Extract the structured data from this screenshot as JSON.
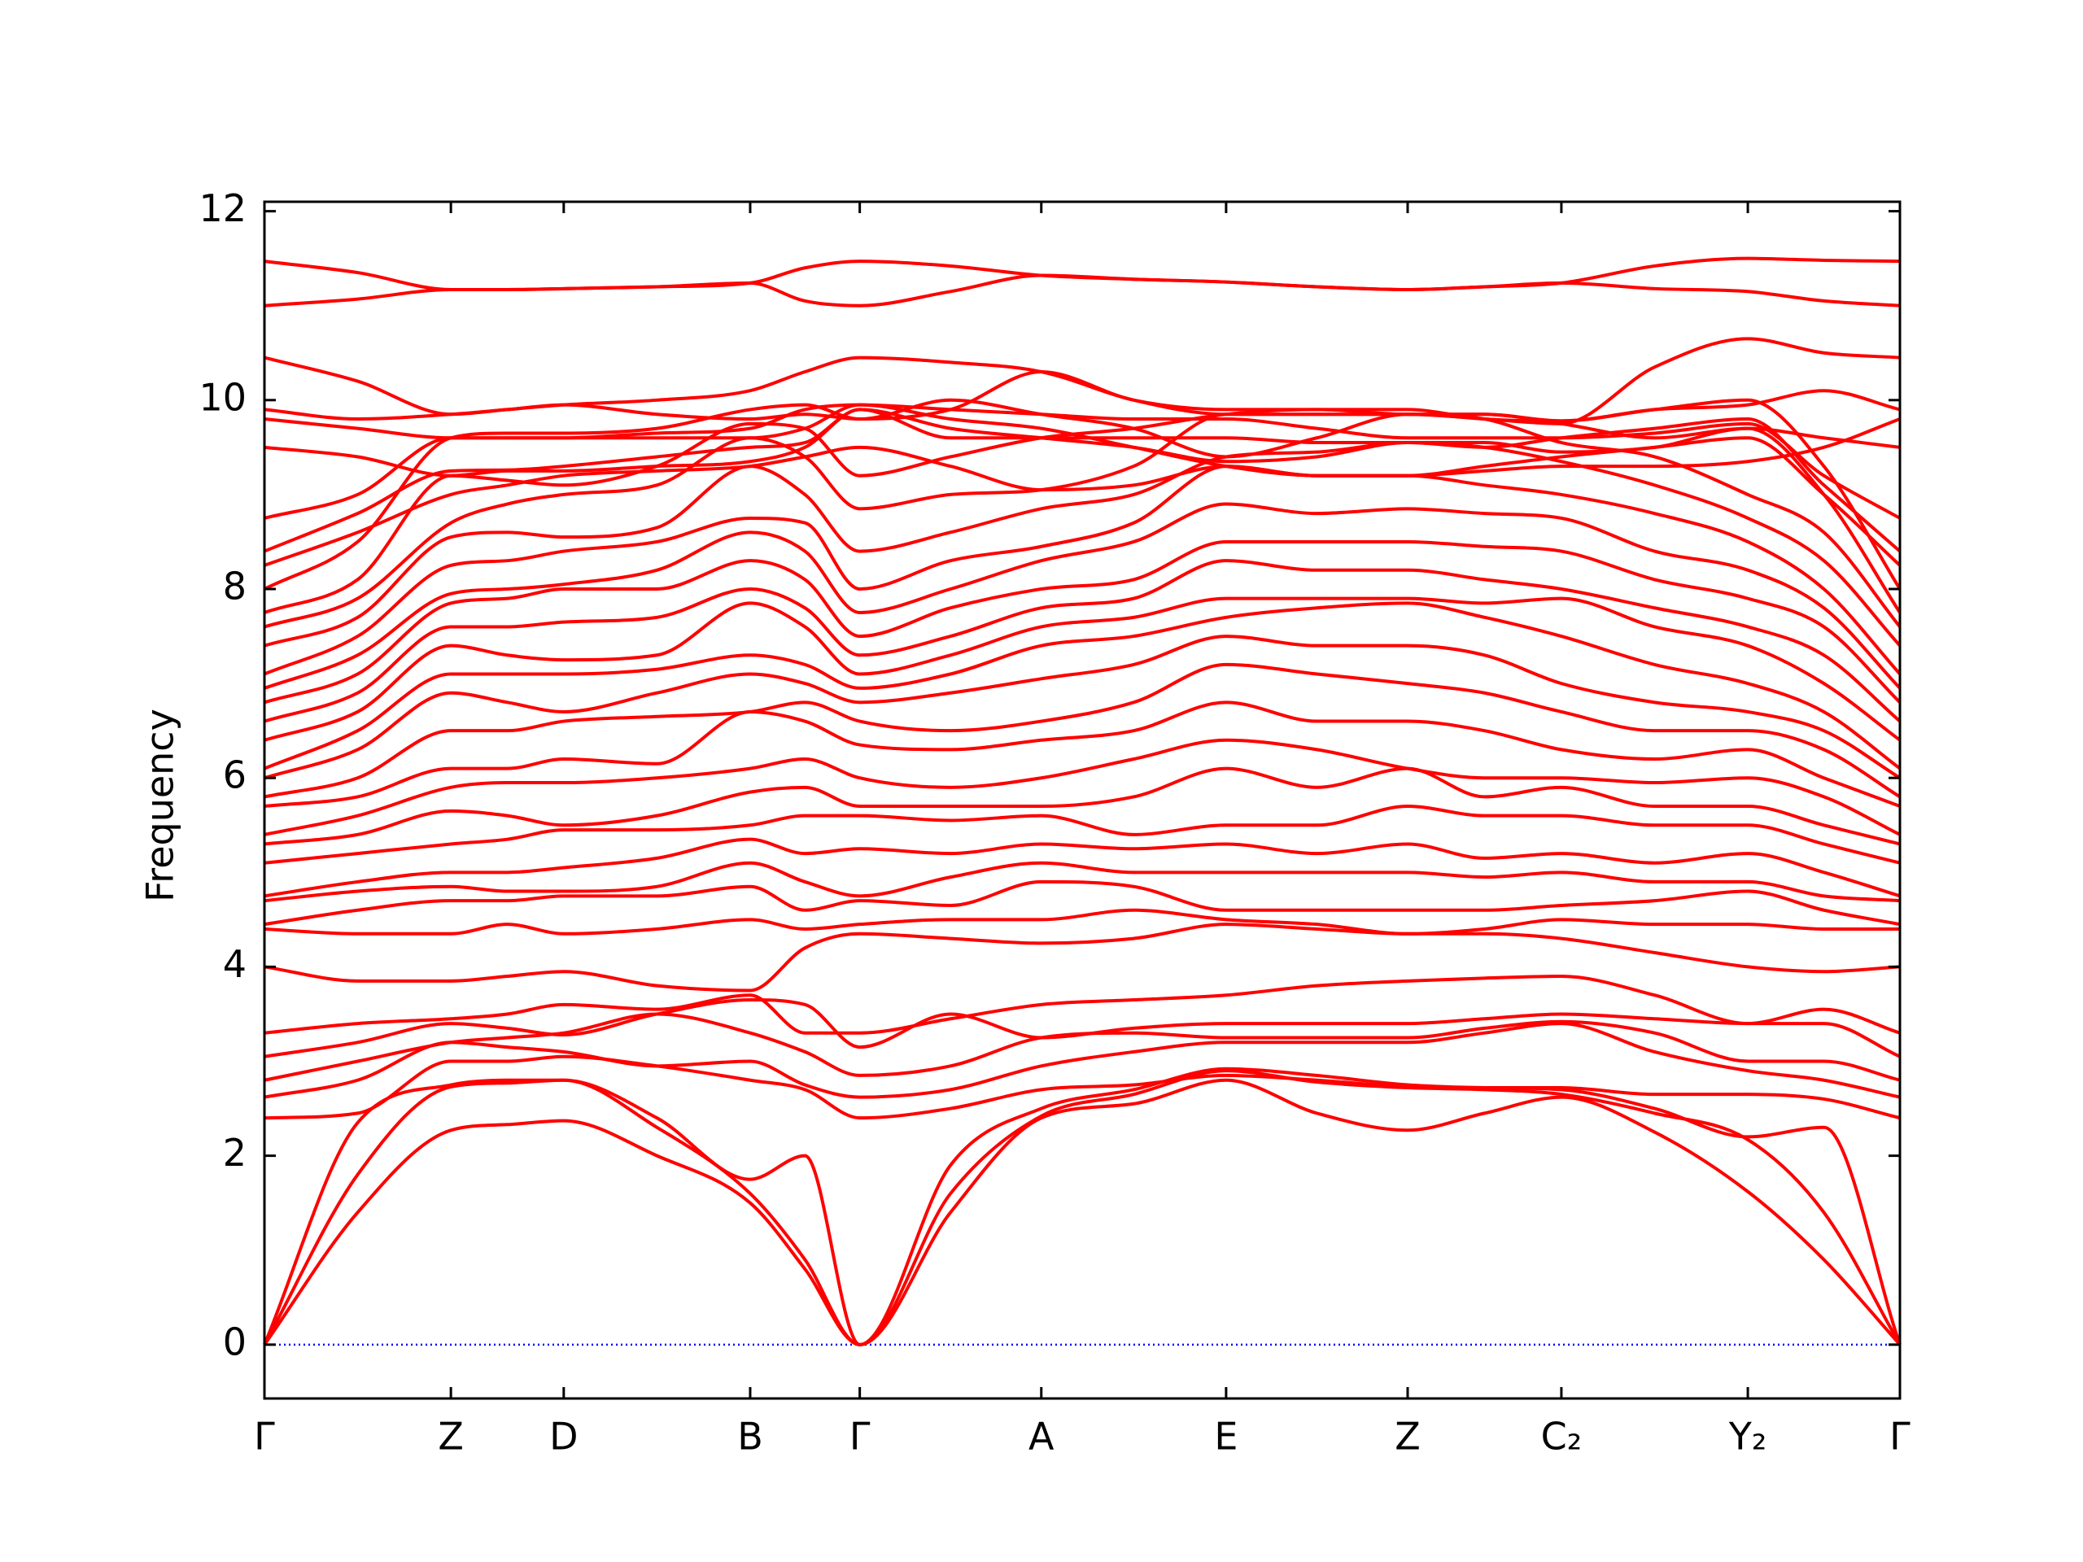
{
  "chart_data": {
    "type": "line",
    "ylabel": "Frequency",
    "x": [
      0,
      0.057,
      0.114,
      0.1485,
      0.183,
      0.24,
      0.297,
      0.3305,
      0.364,
      0.4195,
      0.475,
      0.5315,
      0.588,
      0.6435,
      0.699,
      0.746,
      0.793,
      0.85,
      0.907,
      0.9535,
      1
    ],
    "xlim": [
      0,
      1
    ],
    "xticks": [
      {
        "value": 0,
        "label": "Γ"
      },
      {
        "value": 0.114,
        "label": "Z"
      },
      {
        "value": 0.183,
        "label": "D"
      },
      {
        "value": 0.297,
        "label": "B"
      },
      {
        "value": 0.364,
        "label": "Γ"
      },
      {
        "value": 0.475,
        "label": "A"
      },
      {
        "value": 0.588,
        "label": "E"
      },
      {
        "value": 0.699,
        "label": "Z"
      },
      {
        "value": 0.793,
        "label": "C₂"
      },
      {
        "value": 0.907,
        "label": "Y₂"
      },
      {
        "value": 1,
        "label": "Γ"
      }
    ],
    "ylim": [
      -0.57,
      12.1
    ],
    "yticks": [
      0,
      2,
      4,
      6,
      8,
      10,
      12
    ],
    "color": "#ff0000",
    "hline": {
      "y": 0,
      "color": "#0000ff"
    },
    "series": [
      {
        "values": [
          0,
          1.4,
          2.27,
          2.33,
          2.37,
          2.0,
          1.5,
          0.8,
          0,
          1.4,
          2.4,
          2.55,
          2.8,
          2.45,
          2.27,
          2.45,
          2.62,
          2.25,
          1.62,
          0.9,
          0
        ]
      },
      {
        "values": [
          0,
          1.8,
          2.73,
          2.77,
          2.8,
          2.3,
          1.6,
          0.9,
          0,
          1.6,
          2.42,
          2.65,
          2.9,
          2.78,
          2.72,
          2.7,
          2.65,
          2.45,
          2.17,
          1.4,
          0
        ]
      },
      {
        "values": [
          0,
          2.35,
          2.75,
          2.8,
          2.8,
          2.4,
          1.75,
          2.0,
          0,
          1.9,
          2.5,
          2.7,
          2.92,
          2.85,
          2.75,
          2.72,
          2.7,
          2.5,
          2.2,
          2.3,
          0
        ]
      },
      {
        "values": [
          2.4,
          2.45,
          3.0,
          3.0,
          3.05,
          2.95,
          2.8,
          2.7,
          2.4,
          2.5,
          2.7,
          2.75,
          2.85,
          2.8,
          2.73,
          2.72,
          2.72,
          2.65,
          2.65,
          2.6,
          2.4
        ]
      },
      {
        "values": [
          2.62,
          2.8,
          3.2,
          3.15,
          3.1,
          2.95,
          3.0,
          2.75,
          2.62,
          2.7,
          2.95,
          3.1,
          3.2,
          3.2,
          3.2,
          3.3,
          3.4,
          3.1,
          2.9,
          2.8,
          2.62
        ]
      },
      {
        "values": [
          2.8,
          3.0,
          3.2,
          3.25,
          3.3,
          3.5,
          3.3,
          3.1,
          2.85,
          2.95,
          3.25,
          3.3,
          3.25,
          3.25,
          3.25,
          3.35,
          3.42,
          3.3,
          3.0,
          3.0,
          2.8
        ]
      },
      {
        "values": [
          3.05,
          3.2,
          3.4,
          3.35,
          3.28,
          3.5,
          3.65,
          3.6,
          3.15,
          3.5,
          3.25,
          3.35,
          3.4,
          3.4,
          3.4,
          3.45,
          3.5,
          3.45,
          3.4,
          3.4,
          3.05
        ]
      },
      {
        "values": [
          3.3,
          3.4,
          3.45,
          3.5,
          3.6,
          3.55,
          3.7,
          3.3,
          3.3,
          3.45,
          3.6,
          3.65,
          3.7,
          3.8,
          3.85,
          3.88,
          3.9,
          3.7,
          3.4,
          3.55,
          3.3
        ]
      },
      {
        "values": [
          4.0,
          3.85,
          3.85,
          3.9,
          3.95,
          3.8,
          3.75,
          4.2,
          4.35,
          4.3,
          4.25,
          4.3,
          4.45,
          4.4,
          4.35,
          4.35,
          4.3,
          4.15,
          4.0,
          3.95,
          4.0
        ]
      },
      {
        "values": [
          4.4,
          4.35,
          4.35,
          4.45,
          4.35,
          4.4,
          4.5,
          4.4,
          4.45,
          4.5,
          4.5,
          4.6,
          4.5,
          4.45,
          4.35,
          4.4,
          4.5,
          4.45,
          4.45,
          4.4,
          4.4
        ]
      },
      {
        "values": [
          4.45,
          4.6,
          4.7,
          4.7,
          4.75,
          4.75,
          4.85,
          4.6,
          4.7,
          4.65,
          4.9,
          4.85,
          4.6,
          4.6,
          4.6,
          4.6,
          4.65,
          4.7,
          4.8,
          4.6,
          4.45
        ]
      },
      {
        "values": [
          4.7,
          4.8,
          4.85,
          4.8,
          4.8,
          4.85,
          5.1,
          4.9,
          4.75,
          4.95,
          5.1,
          5.0,
          5.0,
          5.0,
          5.0,
          4.95,
          5.0,
          4.9,
          4.9,
          4.75,
          4.7
        ]
      },
      {
        "values": [
          4.75,
          4.9,
          5.0,
          5.0,
          5.05,
          5.15,
          5.35,
          5.2,
          5.25,
          5.2,
          5.3,
          5.25,
          5.3,
          5.2,
          5.3,
          5.15,
          5.2,
          5.1,
          5.2,
          5.0,
          4.75
        ]
      },
      {
        "values": [
          5.1,
          5.2,
          5.3,
          5.35,
          5.45,
          5.45,
          5.5,
          5.6,
          5.6,
          5.55,
          5.6,
          5.4,
          5.5,
          5.5,
          5.7,
          5.6,
          5.6,
          5.5,
          5.5,
          5.3,
          5.1
        ]
      },
      {
        "values": [
          5.3,
          5.4,
          5.65,
          5.6,
          5.5,
          5.6,
          5.85,
          5.9,
          5.7,
          5.7,
          5.7,
          5.8,
          6.1,
          5.9,
          6.1,
          5.8,
          5.9,
          5.7,
          5.7,
          5.5,
          5.3
        ]
      },
      {
        "values": [
          5.4,
          5.6,
          5.9,
          5.95,
          5.95,
          6.0,
          6.1,
          6.2,
          6.0,
          5.9,
          6.0,
          6.2,
          6.4,
          6.3,
          6.1,
          6.0,
          6.0,
          5.95,
          6.0,
          5.8,
          5.4
        ]
      },
      {
        "values": [
          5.7,
          5.8,
          6.1,
          6.1,
          6.2,
          6.15,
          6.7,
          6.6,
          6.35,
          6.3,
          6.4,
          6.5,
          6.8,
          6.6,
          6.6,
          6.5,
          6.3,
          6.2,
          6.3,
          6.0,
          5.7
        ]
      },
      {
        "values": [
          5.8,
          6.0,
          6.5,
          6.5,
          6.6,
          6.65,
          6.7,
          6.8,
          6.6,
          6.5,
          6.6,
          6.8,
          7.2,
          7.1,
          7.0,
          6.9,
          6.7,
          6.5,
          6.5,
          6.3,
          5.8
        ]
      },
      {
        "values": [
          6.0,
          6.3,
          6.9,
          6.8,
          6.7,
          6.9,
          7.1,
          7.0,
          6.8,
          6.9,
          7.05,
          7.2,
          7.5,
          7.4,
          7.4,
          7.3,
          7.0,
          6.8,
          6.7,
          6.5,
          6.0
        ]
      },
      {
        "values": [
          6.1,
          6.5,
          7.1,
          7.1,
          7.1,
          7.15,
          7.3,
          7.2,
          6.95,
          7.1,
          7.4,
          7.5,
          7.7,
          7.8,
          7.85,
          7.7,
          7.5,
          7.2,
          7.0,
          6.7,
          6.1
        ]
      },
      {
        "values": [
          6.4,
          6.7,
          7.4,
          7.3,
          7.25,
          7.3,
          7.85,
          7.6,
          7.1,
          7.3,
          7.6,
          7.7,
          7.9,
          7.9,
          7.9,
          7.85,
          7.9,
          7.6,
          7.4,
          7.0,
          6.4
        ]
      },
      {
        "values": [
          6.6,
          6.9,
          7.6,
          7.6,
          7.65,
          7.7,
          8.0,
          7.8,
          7.3,
          7.5,
          7.8,
          7.9,
          8.3,
          8.2,
          8.2,
          8.1,
          8.0,
          7.8,
          7.6,
          7.3,
          6.6
        ]
      },
      {
        "values": [
          6.8,
          7.1,
          7.85,
          7.9,
          8.0,
          8.0,
          8.3,
          8.1,
          7.5,
          7.8,
          8.0,
          8.1,
          8.5,
          8.5,
          8.5,
          8.45,
          8.4,
          8.1,
          7.9,
          7.6,
          6.8
        ]
      },
      {
        "values": [
          6.95,
          7.3,
          7.95,
          8.0,
          8.05,
          8.2,
          8.6,
          8.4,
          7.75,
          8.0,
          8.3,
          8.5,
          8.9,
          8.8,
          8.85,
          8.8,
          8.75,
          8.4,
          8.2,
          7.8,
          6.95
        ]
      },
      {
        "values": [
          7.1,
          7.5,
          8.25,
          8.3,
          8.4,
          8.5,
          8.75,
          8.7,
          8.0,
          8.3,
          8.45,
          8.7,
          9.3,
          9.2,
          9.2,
          9.1,
          9.0,
          8.8,
          8.5,
          8.0,
          7.1
        ]
      },
      {
        "values": [
          7.4,
          7.7,
          8.55,
          8.6,
          8.55,
          8.65,
          9.3,
          9.0,
          8.4,
          8.6,
          8.85,
          9.0,
          9.4,
          9.45,
          9.55,
          9.5,
          9.35,
          9.1,
          8.75,
          8.3,
          7.4
        ]
      },
      {
        "values": [
          7.6,
          7.9,
          8.7,
          8.9,
          9.0,
          9.1,
          9.6,
          9.4,
          8.85,
          9.0,
          9.05,
          9.3,
          9.85,
          9.85,
          9.85,
          9.8,
          9.55,
          9.4,
          9.0,
          8.6,
          7.6
        ]
      },
      {
        "values": [
          7.75,
          8.1,
          9.2,
          9.15,
          9.1,
          9.3,
          9.75,
          9.7,
          9.2,
          9.4,
          9.6,
          9.7,
          9.85,
          9.9,
          9.85,
          9.85,
          9.75,
          9.6,
          9.7,
          9.0,
          7.75
        ]
      },
      {
        "values": [
          8.0,
          8.5,
          9.6,
          9.65,
          9.65,
          9.7,
          9.9,
          9.95,
          9.8,
          9.9,
          10.3,
          10.0,
          9.9,
          9.9,
          9.9,
          9.8,
          9.78,
          9.9,
          10.0,
          9.3,
          8.0
        ]
      },
      {
        "values": [
          8.25,
          8.6,
          9.0,
          9.1,
          9.2,
          9.25,
          9.3,
          9.4,
          9.5,
          9.3,
          9.05,
          9.1,
          9.3,
          9.2,
          9.2,
          9.3,
          9.4,
          9.5,
          9.6,
          9.0,
          8.25
        ]
      },
      {
        "values": [
          8.4,
          8.8,
          9.25,
          9.26,
          9.3,
          9.4,
          9.5,
          9.55,
          9.9,
          9.6,
          9.6,
          9.6,
          9.6,
          9.55,
          9.55,
          9.5,
          9.6,
          9.7,
          9.8,
          9.1,
          8.4
        ]
      },
      {
        "values": [
          8.75,
          9.0,
          9.6,
          9.6,
          9.6,
          9.65,
          9.7,
          9.9,
          9.95,
          9.9,
          9.85,
          9.8,
          9.8,
          9.7,
          9.6,
          9.6,
          9.6,
          9.65,
          9.75,
          9.2,
          8.75
        ]
      },
      {
        "values": [
          9.9,
          9.8,
          9.85,
          9.9,
          9.95,
          9.85,
          9.8,
          9.85,
          9.8,
          10.0,
          9.85,
          9.7,
          9.4,
          9.6,
          9.85,
          9.85,
          9.78,
          9.9,
          9.95,
          10.1,
          9.9
        ]
      },
      {
        "values": [
          9.5,
          9.4,
          9.2,
          9.25,
          9.25,
          9.3,
          9.35,
          9.5,
          9.9,
          9.7,
          9.6,
          9.5,
          9.35,
          9.4,
          9.55,
          9.55,
          9.45,
          9.5,
          9.7,
          9.6,
          9.5
        ]
      },
      {
        "values": [
          9.8,
          9.7,
          9.6,
          9.6,
          9.6,
          9.6,
          9.6,
          9.7,
          9.95,
          9.8,
          9.7,
          9.5,
          9.3,
          9.2,
          9.2,
          9.25,
          9.3,
          9.3,
          9.35,
          9.5,
          9.8
        ]
      },
      {
        "values": [
          10.45,
          10.2,
          9.85,
          9.9,
          9.95,
          10.0,
          10.1,
          10.3,
          10.45,
          10.4,
          10.3,
          10.0,
          9.85,
          9.85,
          9.85,
          9.8,
          9.75,
          10.35,
          10.65,
          10.5,
          10.45
        ]
      },
      {
        "values": [
          11.0,
          11.07,
          11.17,
          11.17,
          11.18,
          11.2,
          11.24,
          11.05,
          11.0,
          11.15,
          11.32,
          11.28,
          11.25,
          11.2,
          11.17,
          11.2,
          11.24,
          11.18,
          11.15,
          11.05,
          11.0
        ]
      },
      {
        "values": [
          11.47,
          11.35,
          11.17,
          11.17,
          11.18,
          11.2,
          11.24,
          11.4,
          11.47,
          11.42,
          11.32,
          11.28,
          11.25,
          11.2,
          11.17,
          11.2,
          11.24,
          11.42,
          11.5,
          11.48,
          11.47
        ]
      }
    ]
  }
}
